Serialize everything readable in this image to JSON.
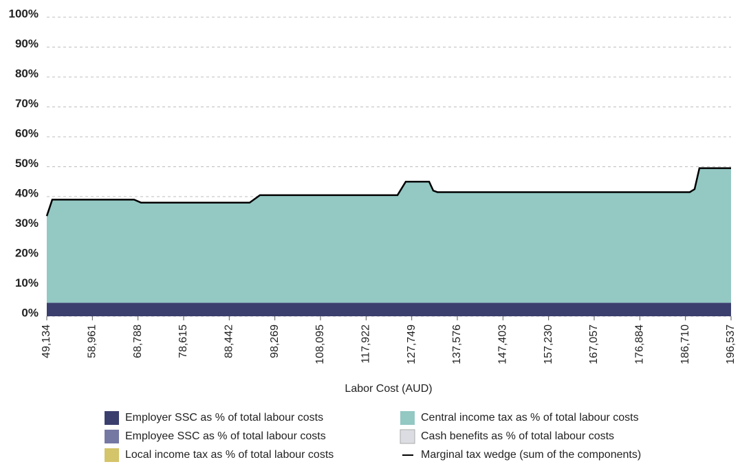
{
  "chart_data": {
    "type": "stacked-area",
    "xlabel": "Labor Cost (AUD)",
    "x": [
      49134,
      50319,
      67948,
      69429,
      92835,
      95058,
      124685,
      126463,
      131500,
      132389,
      133278,
      187645,
      188682,
      189717,
      196537
    ],
    "series": [
      {
        "name": "Employer SSC as % of total labour costs",
        "color": "#3b3f6e",
        "values": [
          4.5,
          4.5,
          4.5,
          4.5,
          4.5,
          4.5,
          4.5,
          4.5,
          4.5,
          4.5,
          4.5,
          4.5,
          4.5,
          4.5,
          4.5
        ]
      },
      {
        "name": "Employee SSC as % of total labour costs",
        "color": "#7578a3",
        "values": [
          0,
          0,
          0,
          0,
          0,
          0,
          0,
          0,
          0,
          0,
          0,
          0,
          0,
          0,
          0
        ]
      },
      {
        "name": "Local income tax as % of total labour costs",
        "color": "#d4c46a",
        "values": [
          0,
          0,
          0,
          0,
          0,
          0,
          0,
          0,
          0,
          0,
          0,
          0,
          0,
          0,
          0
        ]
      },
      {
        "name": "Central income tax as % of total labour costs",
        "color": "#93c8c3",
        "values": [
          29,
          34.5,
          34.5,
          33.5,
          33.5,
          36,
          36,
          40.5,
          40.5,
          37.5,
          37,
          37,
          38,
          45,
          45
        ]
      },
      {
        "name": "Cash benefits as % of total labour costs",
        "color": "#dcdde3",
        "values": [
          0,
          0,
          0,
          0,
          0,
          0,
          0,
          0,
          0,
          0,
          0,
          0,
          0,
          0,
          0
        ]
      },
      {
        "name": "Marginal tax wedge (sum of the components)",
        "color": "#000000",
        "style": "line",
        "values": [
          33.5,
          39,
          39,
          38,
          38,
          40.5,
          40.5,
          45,
          45,
          42,
          41.5,
          41.5,
          42.5,
          49.5,
          49.5
        ]
      }
    ],
    "xlim": [
      49134,
      196537
    ],
    "xticks": [
      {
        "value": 49134,
        "label": "49,134"
      },
      {
        "value": 58961,
        "label": "58,961"
      },
      {
        "value": 68788,
        "label": "68,788"
      },
      {
        "value": 78615,
        "label": "78,615"
      },
      {
        "value": 88442,
        "label": "88,442"
      },
      {
        "value": 98269,
        "label": "98,269"
      },
      {
        "value": 108095,
        "label": "108,095"
      },
      {
        "value": 117922,
        "label": "117,922"
      },
      {
        "value": 127749,
        "label": "127,749"
      },
      {
        "value": 137576,
        "label": "137,576"
      },
      {
        "value": 147403,
        "label": "147,403"
      },
      {
        "value": 157230,
        "label": "157,230"
      },
      {
        "value": 167057,
        "label": "167,057"
      },
      {
        "value": 176884,
        "label": "176,884"
      },
      {
        "value": 186710,
        "label": "186,710"
      },
      {
        "value": 196537,
        "label": "196,537"
      }
    ],
    "ylim": [
      0,
      100
    ],
    "yticks": [
      {
        "value": 0,
        "label": "0%"
      },
      {
        "value": 10,
        "label": "10%"
      },
      {
        "value": 20,
        "label": "20%"
      },
      {
        "value": 30,
        "label": "30%"
      },
      {
        "value": 40,
        "label": "40%"
      },
      {
        "value": 50,
        "label": "50%"
      },
      {
        "value": 60,
        "label": "60%"
      },
      {
        "value": 70,
        "label": "70%"
      },
      {
        "value": 80,
        "label": "80%"
      },
      {
        "value": 90,
        "label": "90%"
      },
      {
        "value": 100,
        "label": "100%"
      }
    ],
    "grid": true
  }
}
